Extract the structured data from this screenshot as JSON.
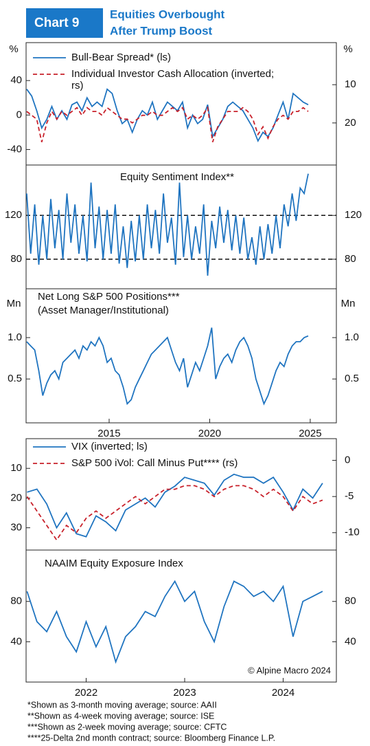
{
  "header": {
    "label": "Chart 9",
    "title": [
      "Equities Overbought",
      "After Trump Boost"
    ]
  },
  "footnotes": [
    "*Shown as 3-month moving average; source: AAII",
    "**Shown as 4-week moving average; source: ISE",
    "***Shown as 2-week moving average; source: CFTC",
    "****25-Delta 2nd month contract; source: Bloomberg Finance L.P."
  ],
  "chart_data": [
    {
      "type": "line",
      "ylabel": "%",
      "y2label": "%",
      "legend": "upper left",
      "xlim": [
        2010.87,
        2026.3
      ],
      "ylim": [
        -58,
        84
      ],
      "yticks": [
        40,
        0,
        -40
      ],
      "y2lim": [
        31,
        -1
      ],
      "y2ticks": [
        10,
        20
      ],
      "x": [
        2010.9,
        2011.15,
        2011.4,
        2011.65,
        2011.9,
        2012.15,
        2012.4,
        2012.65,
        2012.9,
        2013.15,
        2013.4,
        2013.65,
        2013.9,
        2014.15,
        2014.4,
        2014.65,
        2014.9,
        2015.15,
        2015.4,
        2015.65,
        2015.9,
        2016.15,
        2016.4,
        2016.65,
        2016.9,
        2017.15,
        2017.4,
        2017.65,
        2017.9,
        2018.15,
        2018.4,
        2018.65,
        2018.9,
        2019.15,
        2019.4,
        2019.65,
        2019.9,
        2020.15,
        2020.4,
        2020.65,
        2020.9,
        2021.15,
        2021.4,
        2021.65,
        2021.9,
        2022.15,
        2022.4,
        2022.65,
        2022.9,
        2023.15,
        2023.4,
        2023.65,
        2023.9,
        2024.15,
        2024.4,
        2024.65,
        2024.9
      ],
      "series": [
        {
          "name": "Bull-Bear Spread* (ls)",
          "color": "#1f74c0",
          "linestyle": "solid",
          "values": [
            30,
            22,
            5,
            -15,
            -5,
            10,
            -5,
            5,
            -5,
            12,
            15,
            5,
            20,
            10,
            15,
            10,
            30,
            25,
            5,
            -10,
            -5,
            -20,
            -5,
            5,
            0,
            15,
            -5,
            5,
            15,
            10,
            5,
            15,
            -15,
            0,
            -10,
            -5,
            12,
            -25,
            -15,
            -5,
            10,
            15,
            10,
            5,
            -5,
            -15,
            -30,
            -20,
            -25,
            -15,
            0,
            15,
            -5,
            25,
            20,
            15,
            12
          ]
        },
        {
          "name": "Individual Investor Cash Allocation (inverted; rs)",
          "color": "#c8202a",
          "linestyle": "dashed",
          "axis": "y2",
          "values": [
            17,
            18,
            19,
            25,
            20,
            17,
            19,
            17,
            18,
            17,
            16,
            18,
            16,
            17,
            17,
            18,
            16,
            17,
            18,
            19,
            19,
            20,
            19,
            18,
            18,
            17,
            18,
            18,
            17,
            16,
            17,
            16,
            19,
            18,
            19,
            18,
            16,
            25,
            21,
            19,
            17,
            17,
            17,
            16,
            17,
            19,
            23,
            21,
            24,
            21,
            19,
            18,
            19,
            17,
            17,
            16,
            17
          ]
        }
      ]
    },
    {
      "type": "line",
      "title": [
        "Equity Sentiment Index**"
      ],
      "grid": "dashed",
      "xlim": [
        2010.87,
        2026.3
      ],
      "ylim": [
        53,
        166
      ],
      "yticks": [
        80,
        120
      ],
      "y2lim": [
        53,
        166
      ],
      "y2ticks": [
        80,
        120
      ],
      "x": [
        2010.9,
        2011.1,
        2011.3,
        2011.5,
        2011.7,
        2011.9,
        2012.1,
        2012.3,
        2012.5,
        2012.7,
        2012.9,
        2013.1,
        2013.3,
        2013.5,
        2013.7,
        2013.9,
        2014.1,
        2014.3,
        2014.5,
        2014.7,
        2014.9,
        2015.1,
        2015.3,
        2015.5,
        2015.7,
        2015.9,
        2016.1,
        2016.3,
        2016.5,
        2016.7,
        2016.9,
        2017.1,
        2017.3,
        2017.5,
        2017.7,
        2017.9,
        2018.1,
        2018.3,
        2018.5,
        2018.7,
        2018.9,
        2019.1,
        2019.3,
        2019.5,
        2019.7,
        2019.9,
        2020.1,
        2020.3,
        2020.5,
        2020.7,
        2020.9,
        2021.1,
        2021.3,
        2021.5,
        2021.7,
        2021.9,
        2022.1,
        2022.3,
        2022.5,
        2022.7,
        2022.9,
        2023.1,
        2023.3,
        2023.5,
        2023.7,
        2023.9,
        2024.1,
        2024.3,
        2024.5,
        2024.7,
        2024.9
      ],
      "series": [
        {
          "color": "#1f74c0",
          "linestyle": "solid",
          "values": [
            140,
            85,
            130,
            75,
            120,
            80,
            135,
            90,
            125,
            80,
            140,
            95,
            130,
            85,
            120,
            78,
            150,
            90,
            128,
            80,
            125,
            85,
            130,
            76,
            110,
            72,
            115,
            78,
            120,
            80,
            130,
            90,
            125,
            85,
            140,
            95,
            118,
            75,
            150,
            82,
            120,
            80,
            110,
            85,
            130,
            65,
            115,
            90,
            128,
            95,
            125,
            88,
            120,
            85,
            118,
            80,
            100,
            75,
            110,
            80,
            112,
            85,
            120,
            90,
            130,
            110,
            140,
            115,
            145,
            140,
            158
          ]
        }
      ]
    },
    {
      "type": "line",
      "title": [
        "Net Long S&P 500 Positions***",
        "(Asset Manager/Institutional)"
      ],
      "ylabel": "Mn",
      "y2label": "Mn",
      "xlim": [
        2010.87,
        2026.3
      ],
      "xticks": [
        2015,
        2020,
        2025
      ],
      "ylim": [
        -0.03,
        1.59
      ],
      "yticks": [
        0.5,
        {
          "value": 1,
          "label": "1.0"
        }
      ],
      "y2lim": [
        -0.03,
        1.59
      ],
      "y2ticks": [
        0.5,
        {
          "value": 1,
          "label": "1.0"
        }
      ],
      "x": [
        2010.9,
        2011.1,
        2011.3,
        2011.5,
        2011.7,
        2011.9,
        2012.1,
        2012.3,
        2012.5,
        2012.7,
        2012.9,
        2013.1,
        2013.3,
        2013.5,
        2013.7,
        2013.9,
        2014.1,
        2014.3,
        2014.5,
        2014.7,
        2014.9,
        2015.1,
        2015.3,
        2015.5,
        2015.7,
        2015.9,
        2016.1,
        2016.3,
        2016.5,
        2016.7,
        2016.9,
        2017.1,
        2017.3,
        2017.5,
        2017.7,
        2017.9,
        2018.1,
        2018.3,
        2018.5,
        2018.7,
        2018.9,
        2019.1,
        2019.3,
        2019.5,
        2019.7,
        2019.9,
        2020.1,
        2020.3,
        2020.5,
        2020.7,
        2020.9,
        2021.1,
        2021.3,
        2021.5,
        2021.7,
        2021.9,
        2022.1,
        2022.3,
        2022.5,
        2022.7,
        2022.9,
        2023.1,
        2023.3,
        2023.5,
        2023.7,
        2023.9,
        2024.1,
        2024.3,
        2024.5,
        2024.7,
        2024.9
      ],
      "series": [
        {
          "color": "#1f74c0",
          "linestyle": "solid",
          "values": [
            0.95,
            0.9,
            0.85,
            0.6,
            0.3,
            0.45,
            0.55,
            0.6,
            0.5,
            0.7,
            0.75,
            0.8,
            0.85,
            0.75,
            0.9,
            0.85,
            0.95,
            0.9,
            1.0,
            0.9,
            0.7,
            0.75,
            0.6,
            0.55,
            0.4,
            0.2,
            0.25,
            0.4,
            0.5,
            0.6,
            0.7,
            0.8,
            0.85,
            0.9,
            0.95,
            1.0,
            0.85,
            0.7,
            0.6,
            0.75,
            0.4,
            0.55,
            0.7,
            0.6,
            0.75,
            0.9,
            1.12,
            0.5,
            0.65,
            0.75,
            0.8,
            0.7,
            0.85,
            0.95,
            1.0,
            0.9,
            0.75,
            0.5,
            0.35,
            0.2,
            0.3,
            0.45,
            0.6,
            0.7,
            0.65,
            0.8,
            0.9,
            0.95,
            0.95,
            1.0,
            1.02
          ]
        }
      ]
    },
    {
      "type": "line",
      "legend": "upper left",
      "xlim": [
        2021.89,
        2025.04
      ],
      "ylim": [
        37.5,
        0
      ],
      "yticks": [
        10,
        20,
        30
      ],
      "y2lim": [
        -12.4,
        3
      ],
      "y2ticks": [
        0,
        -5,
        -10
      ],
      "x": [
        2021.9,
        2022,
        2022.1,
        2022.2,
        2022.3,
        2022.4,
        2022.5,
        2022.6,
        2022.7,
        2022.8,
        2022.9,
        2023,
        2023.1,
        2023.2,
        2023.3,
        2023.4,
        2023.5,
        2023.6,
        2023.7,
        2023.8,
        2023.9,
        2024,
        2024.1,
        2024.2,
        2024.3,
        2024.4,
        2024.5,
        2024.6,
        2024.7,
        2024.8,
        2024.9
      ],
      "series": [
        {
          "name": "VIX (inverted; ls)",
          "color": "#1f74c0",
          "linestyle": "solid",
          "values": [
            18,
            17,
            22,
            30,
            25,
            32,
            33,
            26,
            28,
            31,
            24,
            22,
            20,
            23,
            18,
            16,
            13,
            14,
            15,
            19,
            14,
            12,
            13,
            13,
            15,
            13,
            18,
            24,
            17,
            20,
            15
          ]
        },
        {
          "name": "S&P 500 iVol: Call Minus Put**** (rs)",
          "color": "#c8202a",
          "linestyle": "dashed",
          "axis": "y2",
          "values": [
            -5,
            -7,
            -9,
            -11,
            -9,
            -10,
            -8,
            -7,
            -8,
            -7,
            -6,
            -5,
            -6,
            -5,
            -4,
            -4,
            -3.5,
            -3.5,
            -4,
            -5,
            -4,
            -3.5,
            -3.5,
            -4,
            -5,
            -4,
            -5,
            -7,
            -5,
            -6,
            -5.5
          ]
        }
      ]
    },
    {
      "type": "line",
      "title": [
        "NAAIM Equity Exposure Index"
      ],
      "note": "© Alpine Macro 2024",
      "xlim": [
        2021.89,
        2025.04
      ],
      "xticks": [
        {
          "value": 2022.5,
          "label": "2022"
        },
        {
          "value": 2023.5,
          "label": "2023"
        },
        {
          "value": 2024.5,
          "label": "2024"
        }
      ],
      "ylim": [
        0,
        131
      ],
      "yticks": [
        40,
        80
      ],
      "y2lim": [
        0,
        131
      ],
      "y2ticks": [
        40,
        80
      ],
      "x": [
        2021.9,
        2022,
        2022.1,
        2022.2,
        2022.3,
        2022.4,
        2022.5,
        2022.6,
        2022.7,
        2022.8,
        2022.9,
        2023,
        2023.1,
        2023.2,
        2023.3,
        2023.4,
        2023.5,
        2023.6,
        2023.7,
        2023.8,
        2023.9,
        2024,
        2024.1,
        2024.2,
        2024.3,
        2024.4,
        2024.5,
        2024.6,
        2024.7,
        2024.8,
        2024.9
      ],
      "series": [
        {
          "color": "#1f74c0",
          "linestyle": "solid",
          "values": [
            90,
            60,
            50,
            70,
            45,
            30,
            60,
            35,
            55,
            20,
            45,
            55,
            70,
            65,
            85,
            100,
            80,
            90,
            60,
            40,
            75,
            100,
            95,
            85,
            90,
            80,
            95,
            45,
            80,
            85,
            90
          ]
        }
      ]
    }
  ]
}
